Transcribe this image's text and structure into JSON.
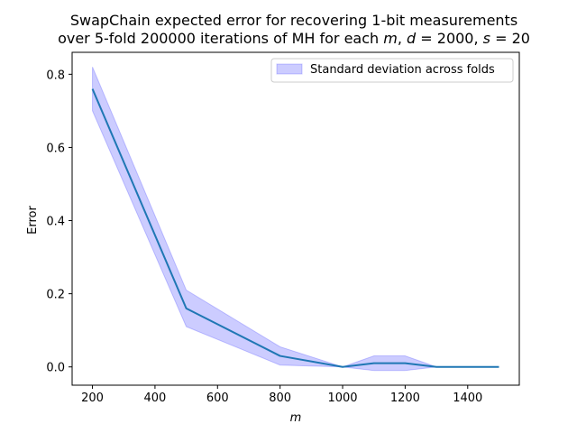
{
  "chart_data": {
    "type": "line",
    "title_line1": "SwapChain expected error for recovering 1-bit measurements",
    "title_line2_parts": [
      "over 5-fold 200000 iterations of MH for each ",
      "m",
      ", ",
      "d",
      " = 2000, ",
      "s",
      " = 20"
    ],
    "xlabel": "m",
    "ylabel": "Error",
    "xlim": [
      135,
      1565
    ],
    "ylim": [
      -0.05,
      0.86
    ],
    "xticks": [
      200,
      400,
      600,
      800,
      1000,
      1200,
      1400
    ],
    "yticks": [
      0.0,
      0.2,
      0.4,
      0.6,
      0.8
    ],
    "xtick_labels": [
      "200",
      "400",
      "600",
      "800",
      "1000",
      "1200",
      "1400"
    ],
    "ytick_labels": [
      "0.0",
      "0.2",
      "0.4",
      "0.6",
      "0.8"
    ],
    "x": [
      200,
      500,
      800,
      1000,
      1100,
      1200,
      1300,
      1500
    ],
    "series": [
      {
        "values": [
          0.76,
          0.16,
          0.03,
          0.0,
          0.01,
          0.01,
          0.0,
          0.0
        ],
        "color": "#1f77b4"
      }
    ],
    "band": {
      "name": "Standard deviation across folds",
      "lower": [
        0.7,
        0.11,
        0.005,
        0.0,
        -0.01,
        -0.01,
        0.0,
        0.0
      ],
      "upper": [
        0.82,
        0.21,
        0.055,
        0.0,
        0.03,
        0.03,
        0.0,
        0.0
      ],
      "fill_color": "#0000ff",
      "fill_opacity": 0.2
    },
    "legend_position": "top-right",
    "grid": false
  }
}
